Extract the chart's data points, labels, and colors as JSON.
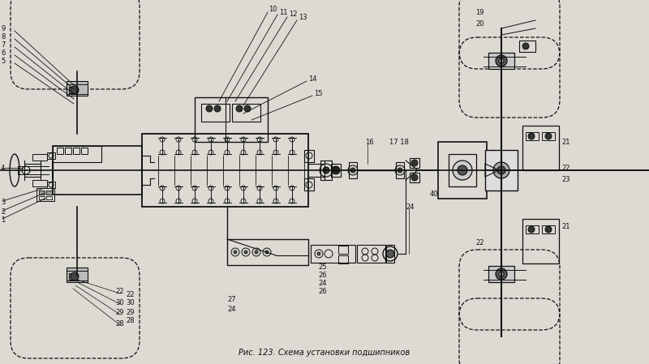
{
  "title": "Рис. 123. Схема установки подшипников",
  "title_fontsize": 7,
  "bg_color": "#dcdad2",
  "line_color": "#111111",
  "fig_width": 8.0,
  "fig_height": 4.49
}
